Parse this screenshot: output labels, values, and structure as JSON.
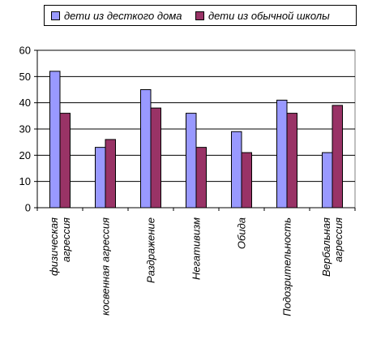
{
  "chart_data": {
    "type": "bar",
    "categories": [
      "физическая агрессия",
      "косвенная агрессия",
      "Раздражение",
      "Негативизм",
      "Обида",
      "Подозрительность",
      "Вербальная агрессия"
    ],
    "category_lines": [
      [
        "физическая",
        "агрессия"
      ],
      [
        "косвенная агрессия"
      ],
      [
        "Раздражение"
      ],
      [
        "Негативизм"
      ],
      [
        "Обида"
      ],
      [
        "Подозрительность"
      ],
      [
        "Вербальная",
        "агрессия"
      ]
    ],
    "series": [
      {
        "name": "дети из десткого дома",
        "color": "#9999ff",
        "values": [
          52,
          23,
          45,
          36,
          29,
          41,
          21
        ]
      },
      {
        "name": "дети из обычной школы",
        "color": "#993366",
        "values": [
          36,
          26,
          38,
          23,
          21,
          36,
          39
        ]
      }
    ],
    "ylim": [
      0,
      60
    ],
    "yticks": [
      0,
      10,
      20,
      30,
      40,
      50,
      60
    ],
    "grid": true,
    "legend": "top"
  }
}
